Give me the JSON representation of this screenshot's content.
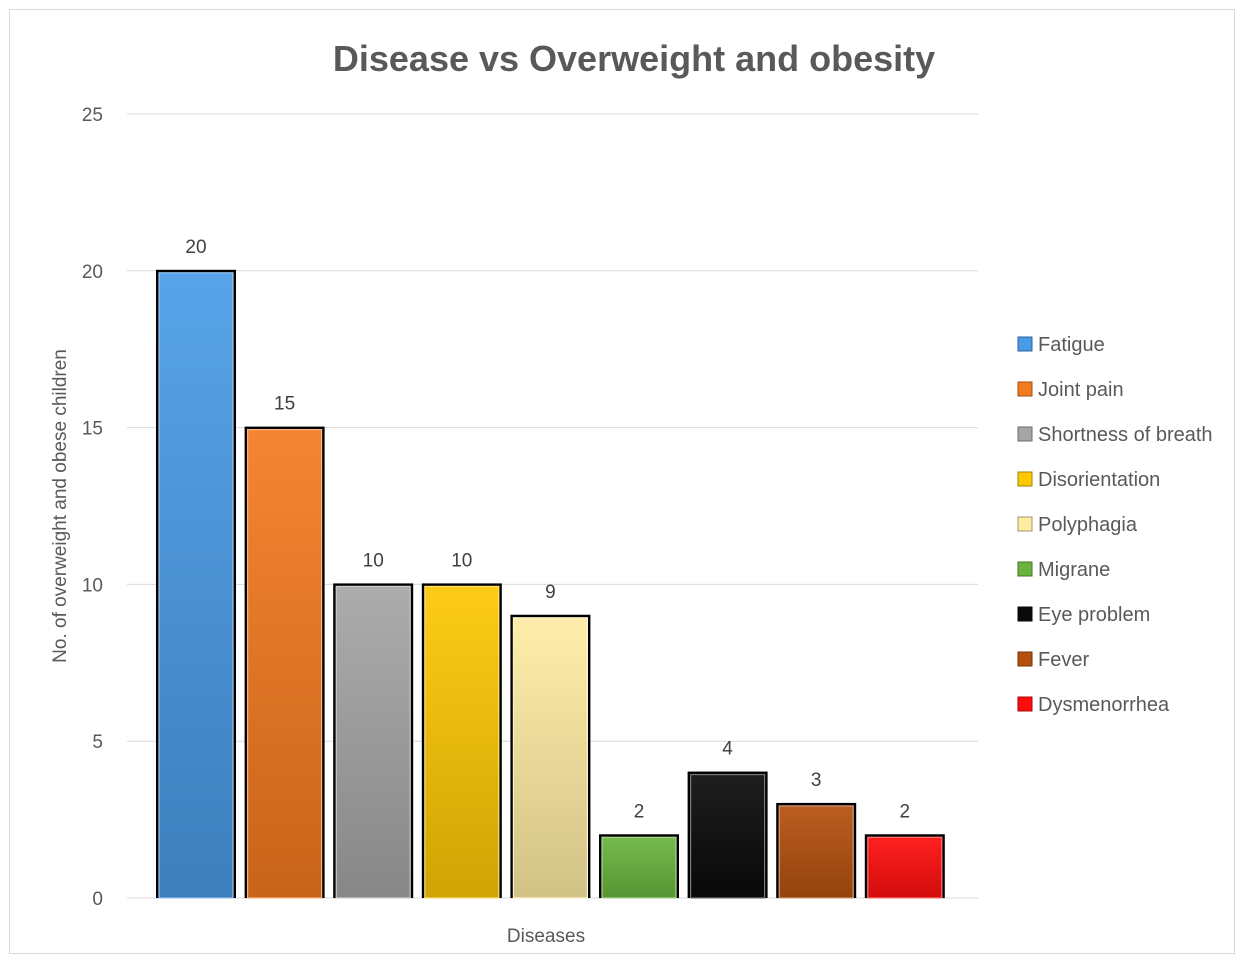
{
  "chart_data": {
    "type": "bar",
    "title": "Disease vs Overweight and obesity",
    "xlabel": "Diseases",
    "ylabel": "No. of overweight and obese children",
    "ylim": [
      0,
      25
    ],
    "yticks": [
      0,
      5,
      10,
      15,
      20,
      25
    ],
    "grid": true,
    "legend_position": "right",
    "data_labels": true,
    "series": [
      {
        "name": "Fatigue",
        "value": 20,
        "color": "#4a9be6"
      },
      {
        "name": "Joint pain",
        "value": 15,
        "color": "#f47a20"
      },
      {
        "name": "Shortness of breath",
        "value": 10,
        "color": "#a5a5a5"
      },
      {
        "name": "Disorientation",
        "value": 10,
        "color": "#fdc804"
      },
      {
        "name": "Polyphagia",
        "value": 9,
        "color": "#ffeca4"
      },
      {
        "name": "Migrane",
        "value": 2,
        "color": "#6ab43e"
      },
      {
        "name": "Eye problem",
        "value": 4,
        "color": "#0a0a0a"
      },
      {
        "name": "Fever",
        "value": 3,
        "color": "#b5500f"
      },
      {
        "name": "Dysmenorrhea",
        "value": 2,
        "color": "#ff0d0d"
      }
    ]
  }
}
